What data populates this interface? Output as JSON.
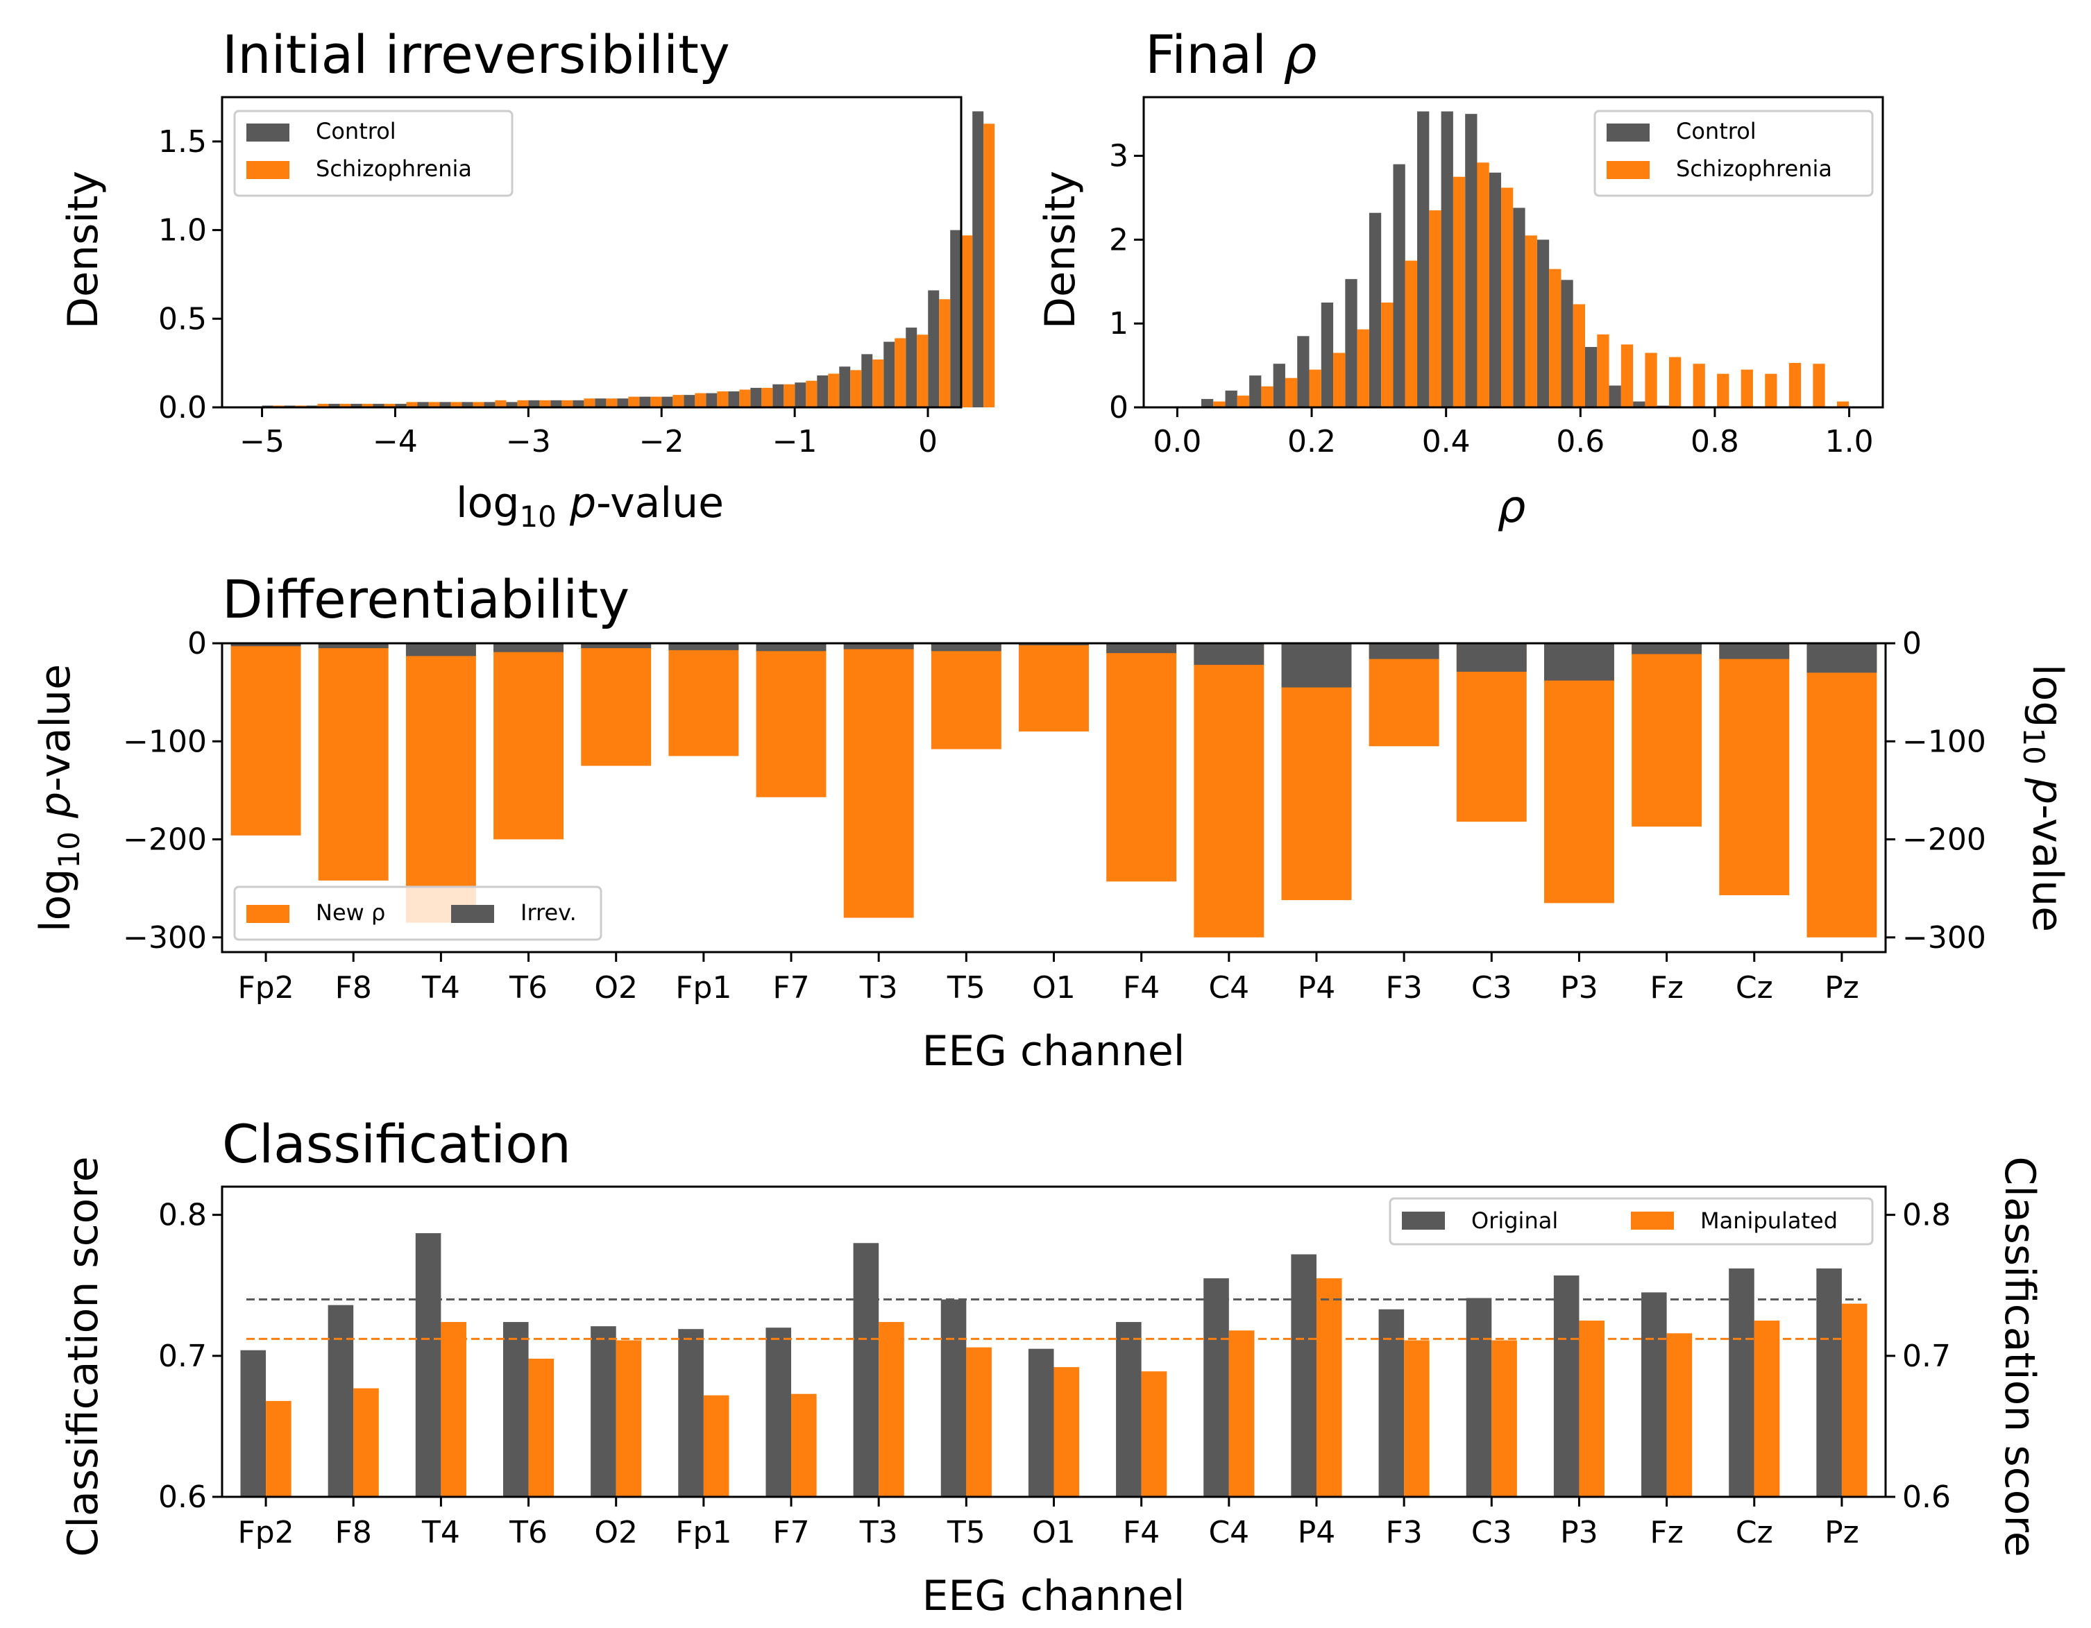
{
  "colors": {
    "control": "#595959",
    "schizo": "#ff7f0e",
    "axis": "#000000"
  },
  "chart_data": [
    {
      "id": "irreversibility",
      "type": "bar",
      "title": "Initial irreversibility",
      "xlabel": "log₁₀ p-value",
      "ylabel": "Density",
      "xlim": [
        -5.3,
        0.25
      ],
      "ylim": [
        0,
        1.75
      ],
      "xticks": [
        -5,
        -4,
        -3,
        -2,
        -1,
        0
      ],
      "xtick_labels": [
        "−5",
        "−4",
        "−3",
        "−2",
        "−1",
        "0"
      ],
      "yticks": [
        0,
        0.5,
        1.0,
        1.5
      ],
      "ytick_labels": [
        "0.0",
        "0.5",
        "1.0",
        "1.5"
      ],
      "bin_start": -5.0,
      "bin_width": 0.1667,
      "legend": "top-left",
      "series": [
        {
          "name": "Control",
          "values": [
            0.01,
            0.01,
            0.01,
            0.02,
            0.02,
            0.02,
            0.02,
            0.03,
            0.03,
            0.03,
            0.03,
            0.03,
            0.04,
            0.04,
            0.04,
            0.05,
            0.05,
            0.06,
            0.06,
            0.07,
            0.08,
            0.09,
            0.11,
            0.13,
            0.14,
            0.18,
            0.23,
            0.3,
            0.37,
            0.45,
            0.66,
            1.0,
            1.67
          ]
        },
        {
          "name": "Schizophrenia",
          "values": [
            0.01,
            0.01,
            0.02,
            0.02,
            0.02,
            0.02,
            0.03,
            0.03,
            0.03,
            0.03,
            0.04,
            0.04,
            0.04,
            0.04,
            0.05,
            0.05,
            0.06,
            0.06,
            0.07,
            0.08,
            0.09,
            0.1,
            0.11,
            0.13,
            0.15,
            0.19,
            0.21,
            0.27,
            0.39,
            0.41,
            0.61,
            0.97,
            1.6
          ]
        }
      ]
    },
    {
      "id": "final-rho",
      "type": "bar",
      "title": "Final ρ",
      "xlabel": "ρ",
      "ylabel": "Density",
      "xlim": [
        -0.05,
        1.05
      ],
      "ylim": [
        0,
        3.7
      ],
      "xticks": [
        0,
        0.2,
        0.4,
        0.6,
        0.8,
        1.0
      ],
      "xtick_labels": [
        "0.0",
        "0.2",
        "0.4",
        "0.6",
        "0.8",
        "1.0"
      ],
      "yticks": [
        0,
        1,
        2,
        3
      ],
      "ytick_labels": [
        "0",
        "1",
        "2",
        "3"
      ],
      "bin_start": 0.0,
      "bin_width": 0.0357,
      "legend": "top-right",
      "series": [
        {
          "name": "Control",
          "values": [
            0.0,
            0.1,
            0.2,
            0.38,
            0.52,
            0.85,
            1.25,
            1.53,
            2.32,
            2.9,
            3.53,
            3.53,
            3.5,
            2.8,
            2.38,
            2.0,
            1.52,
            0.72,
            0.26,
            0.07,
            0.02,
            0,
            0,
            0,
            0,
            0,
            0,
            0
          ]
        },
        {
          "name": "Schizophrenia",
          "values": [
            0.0,
            0.07,
            0.14,
            0.25,
            0.35,
            0.45,
            0.65,
            0.93,
            1.25,
            1.75,
            2.35,
            2.75,
            2.92,
            2.62,
            2.05,
            1.65,
            1.23,
            0.87,
            0.75,
            0.65,
            0.6,
            0.52,
            0.4,
            0.45,
            0.4,
            0.53,
            0.52,
            0.07
          ]
        }
      ]
    },
    {
      "id": "differentiability",
      "type": "bar",
      "title": "Differentiability",
      "xlabel": "EEG channel",
      "ylabel": "log₁₀ p-value",
      "ylabel_right": "log₁₀ p-value",
      "ylim": [
        -315,
        0
      ],
      "yticks": [
        0,
        -100,
        -200,
        -300
      ],
      "ytick_labels": [
        "0",
        "−100",
        "−200",
        "−300"
      ],
      "categories": [
        "Fp2",
        "F8",
        "T4",
        "T6",
        "O2",
        "Fp1",
        "F7",
        "T3",
        "T5",
        "O1",
        "F4",
        "C4",
        "P4",
        "F3",
        "C3",
        "P3",
        "Fz",
        "Cz",
        "Pz"
      ],
      "legend": "bottom-left",
      "series": [
        {
          "name": "New ρ",
          "values": [
            -196,
            -242,
            -285,
            -200,
            -125,
            -115,
            -157,
            -280,
            -108,
            -90,
            -243,
            -300,
            -262,
            -105,
            -182,
            -265,
            -187,
            -257,
            -300
          ]
        },
        {
          "name": "Irrev.",
          "values": [
            -3,
            -5,
            -13,
            -9,
            -5,
            -7,
            -8,
            -6,
            -8,
            -2,
            -10,
            -22,
            -45,
            -16,
            -29,
            -38,
            -11,
            -16,
            -30
          ]
        }
      ]
    },
    {
      "id": "classification",
      "type": "bar",
      "title": "Classification",
      "xlabel": "EEG channel",
      "ylabel": "Classification score",
      "ylabel_right": "Classification score",
      "ylim": [
        0.6,
        0.82
      ],
      "yticks": [
        0.6,
        0.7,
        0.8
      ],
      "ytick_labels": [
        "0.6",
        "0.7",
        "0.8"
      ],
      "categories": [
        "Fp2",
        "F8",
        "T4",
        "T6",
        "O2",
        "Fp1",
        "F7",
        "T3",
        "T5",
        "O1",
        "F4",
        "C4",
        "P4",
        "F3",
        "C3",
        "P3",
        "Fz",
        "Cz",
        "Pz"
      ],
      "legend": "top-right",
      "baselines": {
        "original": 0.74,
        "manipulated": 0.712
      },
      "series": [
        {
          "name": "Original",
          "values": [
            0.704,
            0.736,
            0.787,
            0.724,
            0.721,
            0.719,
            0.72,
            0.78,
            0.74,
            0.705,
            0.724,
            0.755,
            0.772,
            0.733,
            0.741,
            0.757,
            0.745,
            0.762,
            0.762
          ]
        },
        {
          "name": "Manipulated",
          "values": [
            0.668,
            0.677,
            0.724,
            0.698,
            0.711,
            0.672,
            0.673,
            0.724,
            0.706,
            0.692,
            0.689,
            0.718,
            0.755,
            0.711,
            0.711,
            0.725,
            0.716,
            0.725,
            0.737
          ]
        }
      ]
    }
  ]
}
